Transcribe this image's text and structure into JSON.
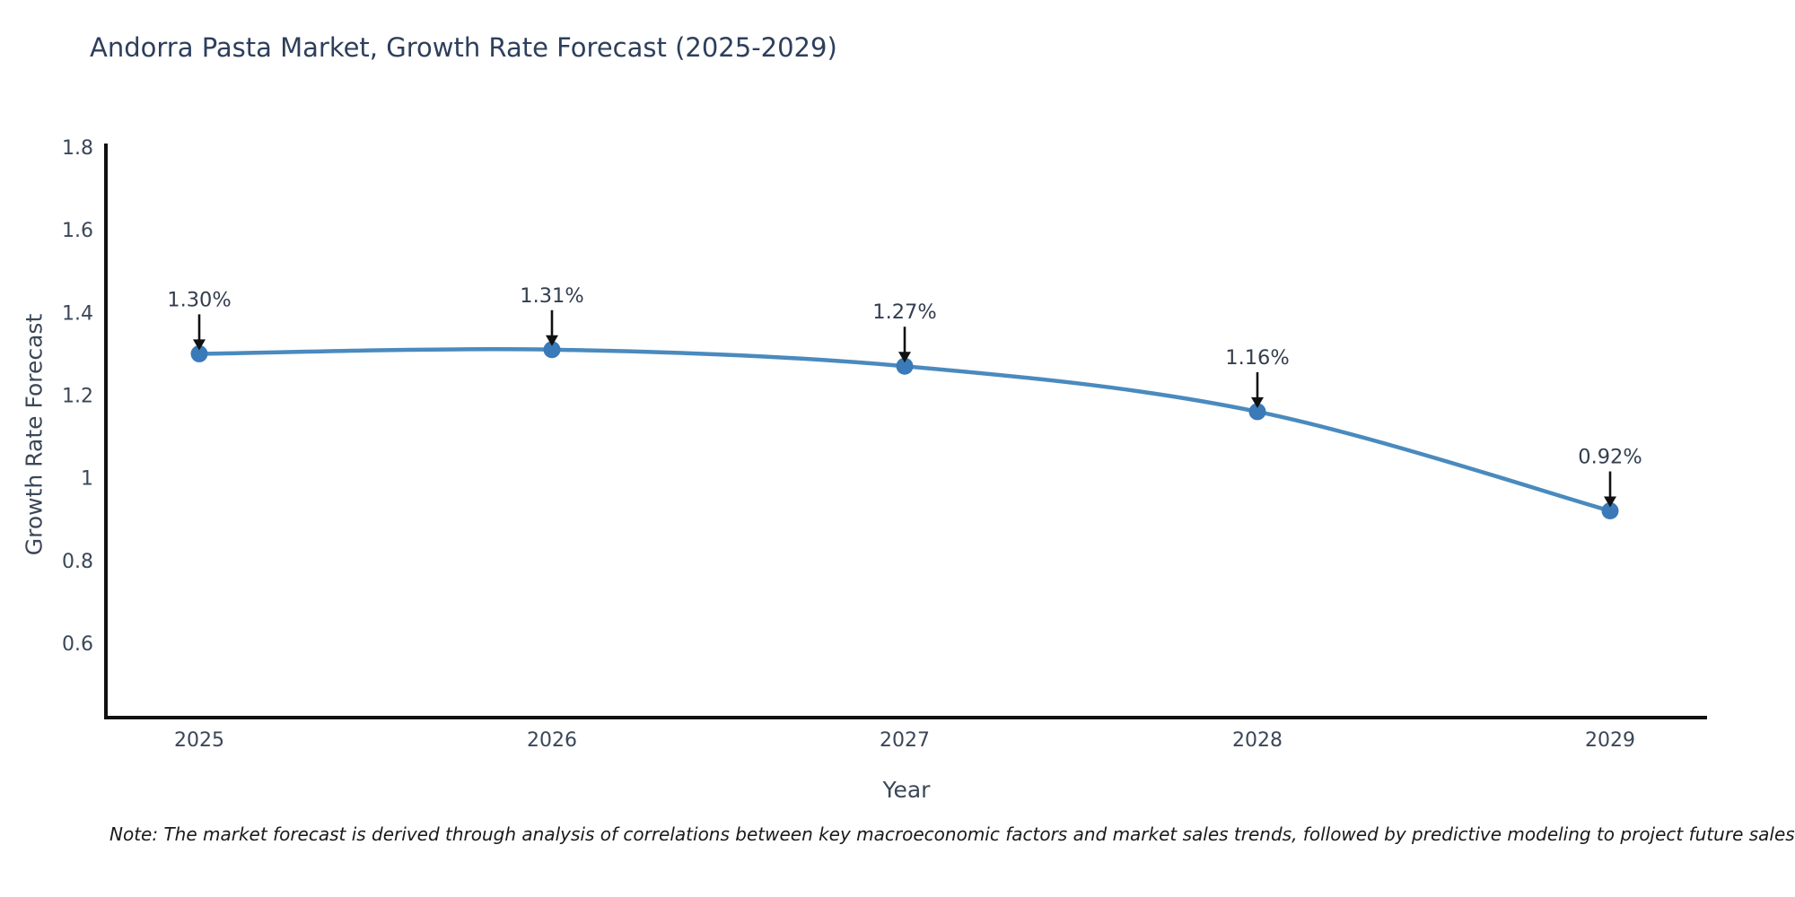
{
  "note": "Note: The market forecast is derived through analysis of correlations between key macroeconomic factors and market sales trends, followed by predictive modeling to project future sales",
  "chart_data": {
    "type": "line",
    "title": "Andorra Pasta Market, Growth Rate Forecast (2025-2029)",
    "xlabel": "Year",
    "ylabel": "Growth Rate Forecast",
    "categories": [
      "2025",
      "2026",
      "2027",
      "2028",
      "2029"
    ],
    "values": [
      1.3,
      1.31,
      1.27,
      1.16,
      0.92
    ],
    "point_labels": [
      "1.30%",
      "1.31%",
      "1.27%",
      "1.16%",
      "0.92%"
    ],
    "yticks": [
      0.6,
      0.8,
      1,
      1.2,
      1.4,
      1.6,
      1.8
    ],
    "ylim": [
      0.42,
      1.8
    ],
    "grid": false,
    "legend": "none",
    "line_color": "#4a8abe",
    "marker_color": "#3a7ab8",
    "axis_color": "#111111",
    "tick_color": "#3b4758",
    "title_color": "#2e3f5c",
    "annotation_color": "#333e4e",
    "arrow_color": "#111111"
  }
}
